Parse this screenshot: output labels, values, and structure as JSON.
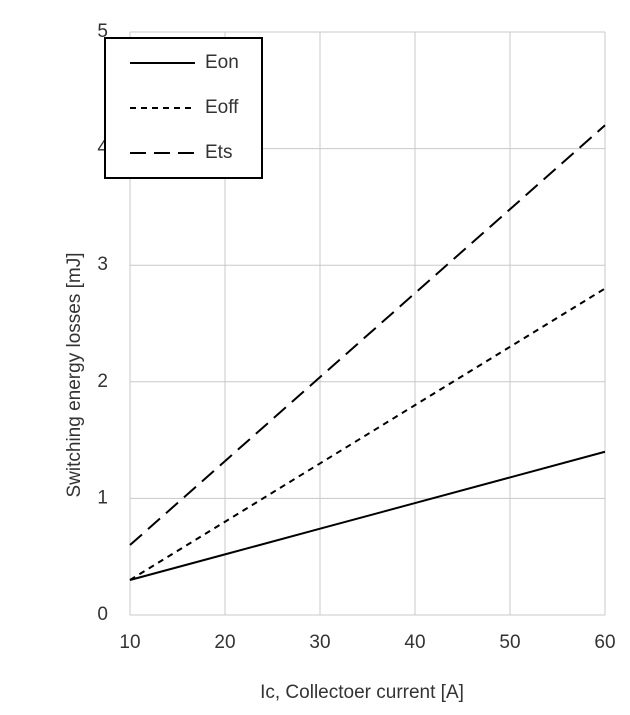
{
  "chart_data": {
    "type": "line",
    "x_label": "Ic, Collectoer current [A]",
    "y_label": "Switching energy losses [mJ]",
    "x": [
      10,
      20,
      30,
      40,
      50,
      60
    ],
    "series": [
      {
        "name": "Eon",
        "color": "#000000",
        "dash": "solid",
        "values": [
          0.3,
          0.52,
          0.74,
          0.96,
          1.18,
          1.4
        ]
      },
      {
        "name": "Eoff",
        "color": "#000000",
        "dash": "short",
        "values": [
          0.3,
          0.8,
          1.3,
          1.8,
          2.3,
          2.8
        ]
      },
      {
        "name": "Ets",
        "color": "#000000",
        "dash": "long",
        "values": [
          0.6,
          1.32,
          2.04,
          2.76,
          3.48,
          4.2
        ]
      }
    ],
    "xlim": [
      10,
      60
    ],
    "xticks": [
      10,
      20,
      30,
      40,
      50,
      60
    ],
    "ylim": [
      0,
      5
    ],
    "yticks": [
      0,
      1,
      2,
      3,
      4,
      5
    ],
    "grid": true,
    "legend": "upper-left"
  }
}
